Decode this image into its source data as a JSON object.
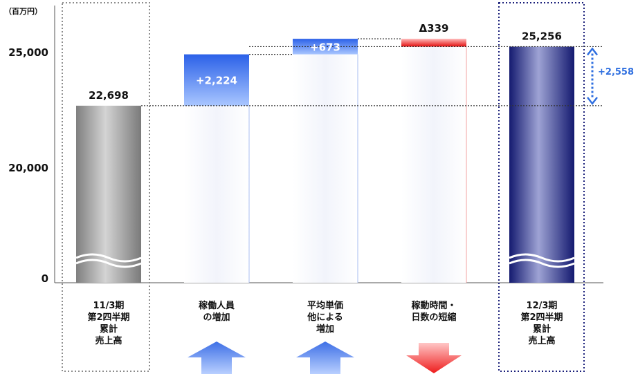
{
  "chart_data": {
    "type": "bar",
    "subtype": "waterfall",
    "unit_label": "（百万円）",
    "y_ticks": [
      "0",
      "20,000",
      "25,000"
    ],
    "y_tick_values": [
      0,
      20000,
      25000
    ],
    "axis_break": true,
    "grid": false,
    "categories": [
      [
        "11/3期",
        "第2四半期",
        "累計",
        "売上高"
      ],
      [
        "稼働人員",
        "の増加"
      ],
      [
        "平均単価",
        "他による",
        "増加"
      ],
      [
        "稼動時間・",
        "日数の短縮"
      ],
      [
        "12/3期",
        "第2四半期",
        "累計",
        "売上高"
      ]
    ],
    "bars": [
      {
        "kind": "total",
        "value": 22698,
        "label": "22,698",
        "color": "#9a9a9a"
      },
      {
        "kind": "increase",
        "value": 2224,
        "label": "+2,224",
        "color": "#3b6fe8"
      },
      {
        "kind": "increase",
        "value": 673,
        "label": "+673",
        "color": "#3b6fe8"
      },
      {
        "kind": "decrease",
        "value": -339,
        "label": "Δ339",
        "color": "#e81818"
      },
      {
        "kind": "total",
        "value": 25256,
        "label": "25,256",
        "color": "#1a1f7a"
      }
    ],
    "difference": {
      "value": 2558,
      "label": "+2,558",
      "color": "#2f6fe0"
    },
    "arrows": [
      "",
      "up",
      "up",
      "down",
      ""
    ]
  }
}
